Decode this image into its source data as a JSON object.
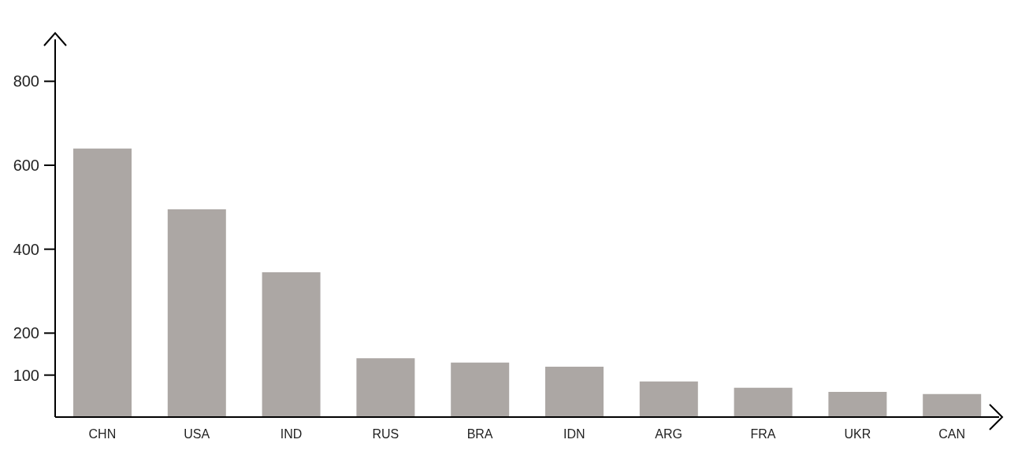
{
  "chart_data": {
    "type": "bar",
    "categories": [
      "CHN",
      "USA",
      "IND",
      "RUS",
      "BRA",
      "IDN",
      "ARG",
      "FRA",
      "UKR",
      "CAN"
    ],
    "values": [
      640,
      495,
      345,
      140,
      130,
      120,
      85,
      70,
      60,
      55
    ],
    "color": "#aca7a4",
    "ylim": [
      0,
      900
    ],
    "yticks": [
      100,
      200,
      400,
      600,
      800
    ],
    "grid": false,
    "legend": false
  }
}
